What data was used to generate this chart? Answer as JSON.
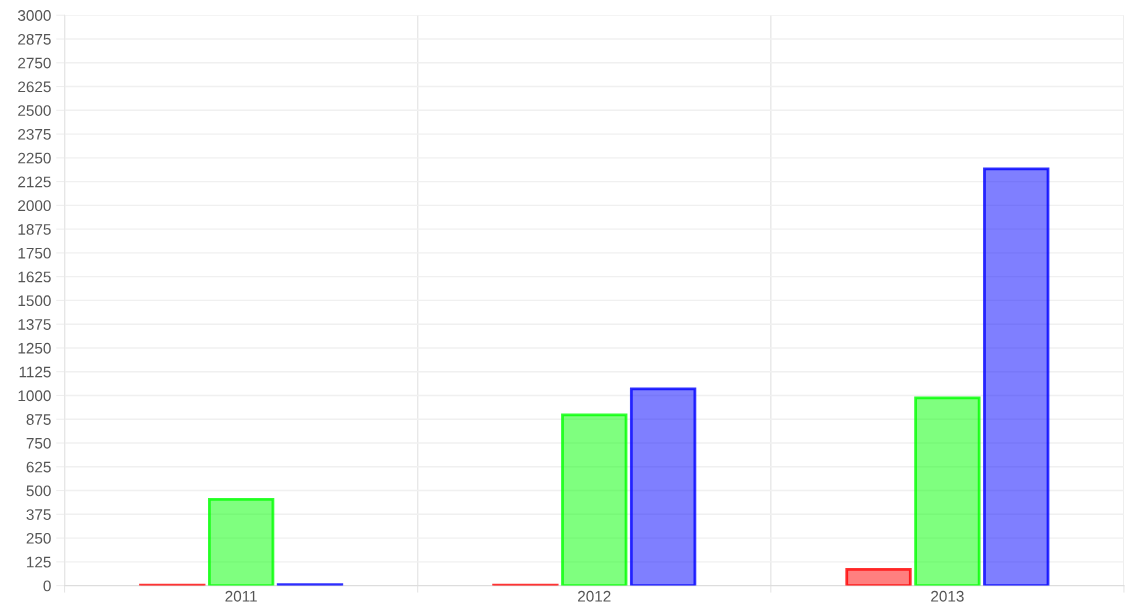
{
  "chart_data": {
    "type": "bar",
    "categories": [
      "2011",
      "2012",
      "2013"
    ],
    "series": [
      {
        "color": "#ff0000",
        "values": [
          3,
          3,
          85
        ]
      },
      {
        "color": "#00ff00",
        "values": [
          454,
          898,
          988
        ]
      },
      {
        "color": "#0000ff",
        "values": [
          5,
          1035,
          2192
        ]
      }
    ],
    "ylim": [
      0,
      3000
    ],
    "yticks": [
      0,
      125,
      250,
      375,
      500,
      625,
      750,
      875,
      1000,
      1125,
      1250,
      1375,
      1500,
      1625,
      1750,
      1875,
      2000,
      2125,
      2250,
      2375,
      2500,
      2625,
      2750,
      2875,
      3000
    ],
    "grid": true
  }
}
